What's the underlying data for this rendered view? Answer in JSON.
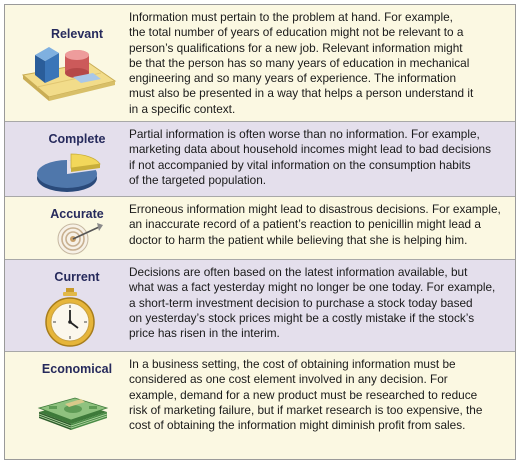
{
  "rows": [
    {
      "term": "Relevant",
      "icon": "blocks-on-mat-icon",
      "lines": [
        "Information must pertain to the problem at hand. For example,",
        "the total number of years of education might not be relevant to a",
        "person’s qualifications for a new job. Relevant information might",
        "be that the person has so many years of education in mechanical",
        "engineering and so many years of experience. The information",
        "must also be presented in a way that helps a person understand it",
        "in a specific context."
      ]
    },
    {
      "term": "Complete",
      "icon": "pie-chart-missing-slice-icon",
      "lines": [
        "Partial information is often worse than no information. For example,",
        "marketing data about household incomes might lead to bad decisions",
        "if not accompanied by vital information on the consumption habits",
        "of the targeted population."
      ]
    },
    {
      "term": "Accurate",
      "icon": "target-with-dart-icon",
      "lines": [
        "Erroneous information might lead to disastrous decisions. For example,",
        "an inaccurate record of a patient’s reaction to penicillin might lead a",
        "doctor to harm the patient while believing that she is helping him."
      ]
    },
    {
      "term": "Current",
      "icon": "stopwatch-icon",
      "lines": [
        "Decisions are often based on the latest information available, but",
        "what was a fact yesterday might no longer be one today. For example,",
        "a short-term investment decision to purchase a stock today based",
        "on yesterday’s stock prices might be a costly mistake if the stock’s",
        "price has risen in the interim."
      ]
    },
    {
      "term": "Economical",
      "icon": "money-stack-icon",
      "lines": [
        "In a business setting, the cost of obtaining information must be",
        "considered as one cost element involved in any decision. For",
        "example, demand for a new product must be researched to reduce",
        "risk of marketing failure, but if market research is too expensive, the",
        "cost of obtaining the information might diminish profit from sales."
      ]
    }
  ]
}
